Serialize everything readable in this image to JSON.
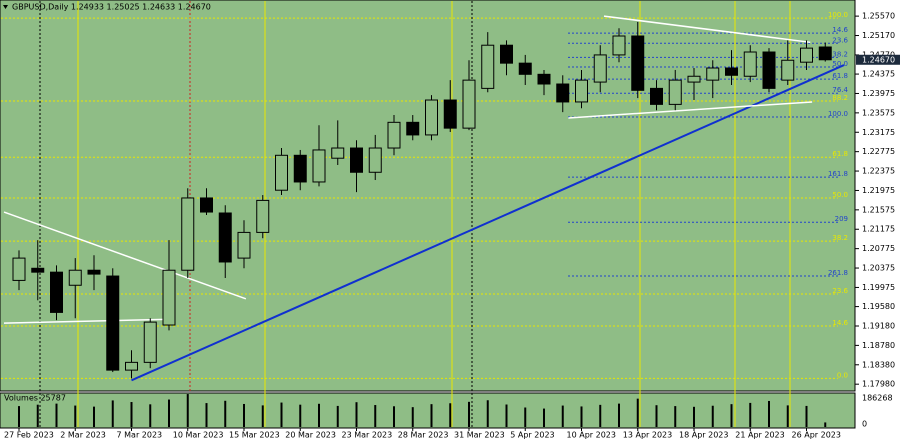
{
  "chart_data": {
    "type": "candlestick",
    "title": "GBPUSD,Daily  1.24933 1.25025 1.24633 1.24670",
    "categories": [
      "27 Feb 2023",
      null,
      null,
      "2 Mar 2023",
      null,
      null,
      "7 Mar 2023",
      null,
      null,
      "10 Mar 2023",
      null,
      null,
      "15 Mar 2023",
      null,
      null,
      "20 Mar 2023",
      null,
      null,
      "23 Mar 2023",
      null,
      null,
      "28 Mar 2023",
      null,
      null,
      "31 Mar 2023",
      null,
      null,
      "5 Apr 2023",
      null,
      null,
      "10 Apr 2023",
      null,
      null,
      "13 Apr 2023",
      null,
      null,
      "18 Apr 2023",
      null,
      null,
      "21 Apr 2023",
      null,
      null,
      "26 Apr 2023",
      null
    ],
    "open": [
      1.2012,
      1.2037,
      1.2029,
      1.2002,
      1.2033,
      1.2021,
      1.1827,
      1.1843,
      1.192,
      1.2033,
      1.2182,
      1.2151,
      1.2058,
      1.2111,
      1.2198,
      1.227,
      1.2215,
      1.2264,
      1.2285,
      1.2235,
      1.2285,
      1.2338,
      1.2312,
      1.2384,
      1.2326,
      1.2408,
      1.2497,
      1.246,
      1.2437,
      1.2417,
      1.238,
      1.2421,
      1.2477,
      1.2516,
      1.2408,
      1.2375,
      1.2421,
      1.2425,
      1.245,
      1.2433,
      1.2483,
      1.2425,
      1.2462,
      1.24933
    ],
    "high": [
      1.2074,
      1.2095,
      1.2043,
      1.2058,
      1.2064,
      1.2037,
      1.1868,
      1.1934,
      1.2095,
      1.2202,
      1.2202,
      1.2167,
      1.2136,
      1.2188,
      1.2285,
      1.2281,
      1.2332,
      1.2342,
      1.2301,
      1.2312,
      1.2353,
      1.2353,
      1.2394,
      1.2425,
      1.2466,
      1.2524,
      1.2507,
      1.2477,
      1.2446,
      1.2435,
      1.2446,
      1.2497,
      1.2532,
      1.2545,
      1.2425,
      1.2446,
      1.245,
      1.2466,
      1.2487,
      1.2497,
      1.2491,
      1.2507,
      1.2507,
      1.25025
    ],
    "low": [
      1.1992,
      1.1971,
      1.193,
      1.1934,
      1.1992,
      1.1823,
      1.181,
      1.1831,
      1.1909,
      1.2017,
      1.2147,
      1.2017,
      1.2037,
      1.2099,
      1.2188,
      1.2198,
      1.2206,
      1.225,
      1.2194,
      1.2219,
      1.227,
      1.2301,
      1.2301,
      1.2318,
      1.2322,
      1.24,
      1.2435,
      1.2415,
      1.2394,
      1.2359,
      1.2367,
      1.24,
      1.2462,
      1.2388,
      1.2363,
      1.2363,
      1.2384,
      1.2388,
      1.2415,
      1.2421,
      1.24,
      1.2415,
      1.2446,
      1.24633
    ],
    "close": [
      1.2058,
      1.2029,
      1.1946,
      1.2033,
      1.2025,
      1.1827,
      1.1843,
      1.1926,
      1.2033,
      1.2182,
      1.2153,
      1.205,
      1.2111,
      1.2177,
      1.227,
      1.2215,
      1.2281,
      1.2285,
      1.2235,
      1.2285,
      1.2338,
      1.2312,
      1.2384,
      1.2326,
      1.2425,
      1.2497,
      1.246,
      1.2437,
      1.2417,
      1.238,
      1.2425,
      1.2477,
      1.2516,
      1.2404,
      1.2375,
      1.2425,
      1.2433,
      1.245,
      1.2435,
      1.2483,
      1.2408,
      1.2466,
      1.2491,
      1.2467
    ],
    "ylim": [
      1.1786,
      1.2582
    ],
    "yticks": [
      {
        "value": 1.2557,
        "label": "1.25570"
      },
      {
        "value": 1.2517,
        "label": "1.25170"
      },
      {
        "value": 1.2477,
        "label": "1.24770"
      },
      {
        "value": 1.24375,
        "label": "1.24375"
      },
      {
        "value": 1.23975,
        "label": "1.23975"
      },
      {
        "value": 1.23575,
        "label": "1.23575"
      },
      {
        "value": 1.23175,
        "label": "1.23175"
      },
      {
        "value": 1.22775,
        "label": "1.22775"
      },
      {
        "value": 1.22375,
        "label": "1.22375"
      },
      {
        "value": 1.21975,
        "label": "1.21975"
      },
      {
        "value": 1.21575,
        "label": "1.21575"
      },
      {
        "value": 1.21175,
        "label": "1.21175"
      },
      {
        "value": 1.20775,
        "label": "1.20775"
      },
      {
        "value": 1.20375,
        "label": "1.20375"
      },
      {
        "value": 1.19975,
        "label": "1.19975"
      },
      {
        "value": 1.1958,
        "label": "1.19580"
      },
      {
        "value": 1.1918,
        "label": "1.19180"
      },
      {
        "value": 1.1878,
        "label": "1.18780"
      },
      {
        "value": 1.1838,
        "label": "1.18380"
      },
      {
        "value": 1.1798,
        "label": "1.17980"
      }
    ],
    "price_tag": {
      "value": 1.2467,
      "label": "1.24670"
    },
    "fibo_levels": [
      {
        "label": "100.0",
        "price": 1.2553,
        "color": "#e8e800"
      },
      {
        "label": "14.6",
        "price": 1.2522,
        "color": "#2244cc"
      },
      {
        "label": "23.6",
        "price": 1.2501,
        "color": "#2244cc"
      },
      {
        "label": "38.2",
        "price": 1.2472,
        "color": "#2244cc"
      },
      {
        "label": "50.0",
        "price": 1.2452,
        "color": "#2244cc"
      },
      {
        "label": "61.8",
        "price": 1.2427,
        "color": "#2244cc"
      },
      {
        "label": "76.4",
        "price": 1.2398,
        "color": "#2244cc"
      },
      {
        "label": "88.2",
        "price": 1.2382,
        "color": "#e8e800"
      },
      {
        "label": "100.0",
        "price": 1.2349,
        "color": "#2244cc"
      },
      {
        "label": "61.8",
        "price": 1.2266,
        "color": "#e8e800"
      },
      {
        "label": "161.8",
        "price": 1.2225,
        "color": "#2244cc"
      },
      {
        "label": "50.0",
        "price": 1.2182,
        "color": "#e8e800"
      },
      {
        "label": "209",
        "price": 1.2132,
        "color": "#2244cc"
      },
      {
        "label": "38.2",
        "price": 1.2093,
        "color": "#e8e800"
      },
      {
        "label": "261.8",
        "price": 1.2021,
        "color": "#2244cc"
      },
      {
        "label": "23.6",
        "price": 1.1984,
        "color": "#e8e800"
      },
      {
        "label": "14.6",
        "price": 1.1918,
        "color": "#e8e800"
      },
      {
        "label": "0.0",
        "price": 1.181,
        "color": "#e8e800"
      }
    ],
    "trendlines": [
      {
        "color": "#1030d0",
        "x": [
          6,
          44
        ],
        "y": [
          1.1806,
          1.2456
        ]
      },
      {
        "color": "#ffffff",
        "x": [
          -0.8,
          12.1
        ],
        "y": [
          1.2153,
          1.1974
        ]
      },
      {
        "color": "#ffffff",
        "x": [
          -0.8,
          8.1
        ],
        "y": [
          1.1924,
          1.1932
        ]
      },
      {
        "color": "#ffffff",
        "x": [
          31.2,
          42.2
        ],
        "y": [
          1.2557,
          1.2503
        ]
      },
      {
        "color": "#ffffff",
        "x": [
          29.3,
          42.3
        ],
        "y": [
          1.2347,
          1.238
        ]
      }
    ],
    "volume": {
      "title": "Volumes 25787",
      "values": [
        118000,
        126000,
        132000,
        121000,
        115000,
        150000,
        141000,
        128000,
        155000,
        186000,
        135000,
        148000,
        130000,
        122000,
        138000,
        126000,
        131000,
        119000,
        140000,
        124000,
        117000,
        112000,
        129000,
        134000,
        142000,
        151000,
        127000,
        110000,
        104000,
        121000,
        116000,
        125000,
        132000,
        160000,
        123000,
        118000,
        114000,
        120000,
        129000,
        136000,
        147000,
        122000,
        119000,
        25787
      ],
      "ylim": [
        0,
        186268
      ],
      "yticks": [
        186268,
        0
      ]
    }
  }
}
